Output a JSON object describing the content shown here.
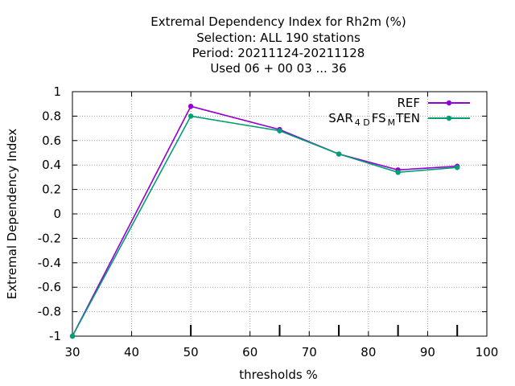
{
  "chart_data": {
    "type": "line",
    "title_lines": [
      "Extremal Dependency Index  for Rh2m (%)",
      "Selection: ALL    190 stations",
      "Period: 20211124-20211128",
      "Used  06 + 00 03 ... 36"
    ],
    "xlabel": "thresholds %",
    "ylabel": "Extremal Dependency Index",
    "xlim": [
      30,
      100
    ],
    "ylim": [
      -1,
      1
    ],
    "x_ticks": [
      "30",
      "40",
      "50",
      "60",
      "70",
      "80",
      "90",
      "100"
    ],
    "y_ticks": [
      "-1",
      "-0.8",
      "-0.6",
      "-0.4",
      "-0.2",
      "0",
      "0.2",
      "0.4",
      "0.6",
      "0.8",
      "1"
    ],
    "grid": true,
    "legend_position": "top-right",
    "series": [
      {
        "name": "REF",
        "color": "#9400d3",
        "x": [
          30,
          50,
          65,
          75,
          85,
          95
        ],
        "y": [
          -1.0,
          0.88,
          0.69,
          0.49,
          0.36,
          0.39
        ]
      },
      {
        "name_parts": [
          "SAR",
          "4 D",
          "FS",
          "M",
          "TEN"
        ],
        "color": "#009e73",
        "x": [
          30,
          50,
          65,
          75,
          85,
          95
        ],
        "y": [
          -1.0,
          0.8,
          0.68,
          0.49,
          0.34,
          0.38
        ]
      }
    ],
    "x_major_marks": [
      50,
      65,
      75,
      85,
      95
    ]
  }
}
